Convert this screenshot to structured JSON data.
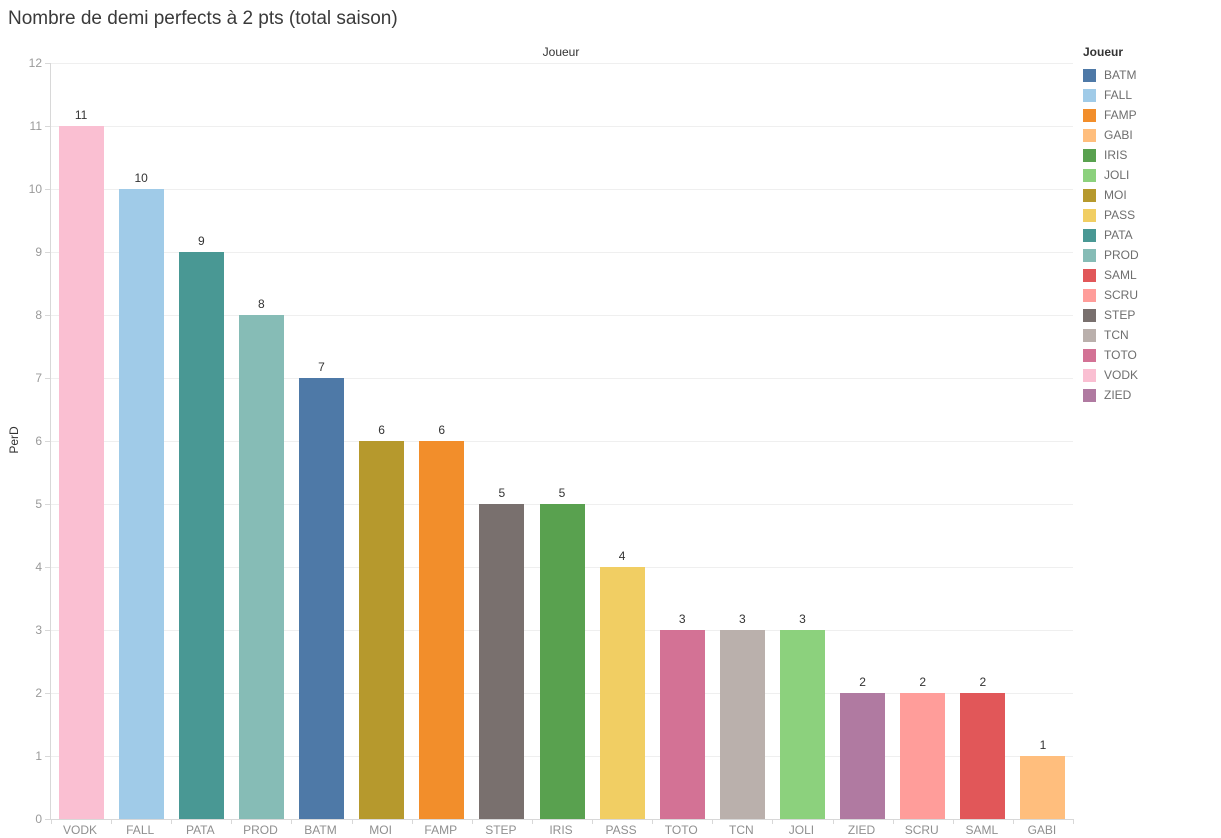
{
  "chart_data": {
    "type": "bar",
    "title": "Nombre de demi perfects à 2 pts (total saison)",
    "top_axis_label": "Joueur",
    "ylabel": "PerD",
    "legend_title": "Joueur",
    "legend_position": "right",
    "grid": "horizontal",
    "ylim": [
      0,
      12
    ],
    "yticks": [
      0,
      1,
      2,
      3,
      4,
      5,
      6,
      7,
      8,
      9,
      10,
      11,
      12
    ],
    "categories": [
      "VODK",
      "FALL",
      "PATA",
      "PROD",
      "BATM",
      "MOI",
      "FAMP",
      "STEP",
      "IRIS",
      "PASS",
      "TOTO",
      "TCN",
      "JOLI",
      "ZIED",
      "SCRU",
      "SAML",
      "GABI"
    ],
    "values": [
      11,
      10,
      9,
      8,
      7,
      6,
      6,
      5,
      5,
      4,
      3,
      3,
      3,
      2,
      2,
      2,
      1
    ],
    "bar_labels": [
      "11",
      "10",
      "9",
      "8",
      "7",
      "6",
      "6",
      "5",
      "5",
      "4",
      "3",
      "3",
      "3",
      "2",
      "2",
      "2",
      "1"
    ],
    "legend": [
      {
        "label": "BATM",
        "color": "#4E79A7"
      },
      {
        "label": "FALL",
        "color": "#A0CBE8"
      },
      {
        "label": "FAMP",
        "color": "#F28E2B"
      },
      {
        "label": "GABI",
        "color": "#FFBE7D"
      },
      {
        "label": "IRIS",
        "color": "#59A14F"
      },
      {
        "label": "JOLI",
        "color": "#8CD17D"
      },
      {
        "label": "MOI",
        "color": "#B6992D"
      },
      {
        "label": "PASS",
        "color": "#F1CE63"
      },
      {
        "label": "PATA",
        "color": "#499894"
      },
      {
        "label": "PROD",
        "color": "#86BCB6"
      },
      {
        "label": "SAML",
        "color": "#E15759"
      },
      {
        "label": "SCRU",
        "color": "#FF9D9A"
      },
      {
        "label": "STEP",
        "color": "#79706E"
      },
      {
        "label": "TCN",
        "color": "#BAB0AC"
      },
      {
        "label": "TOTO",
        "color": "#D37295"
      },
      {
        "label": "VODK",
        "color": "#FABFD2"
      },
      {
        "label": "ZIED",
        "color": "#B07AA1"
      }
    ]
  }
}
